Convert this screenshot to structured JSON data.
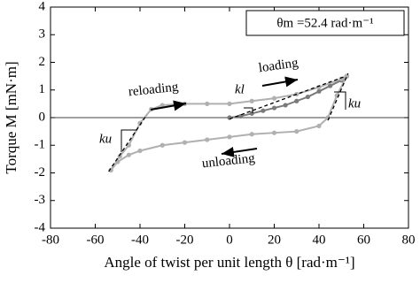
{
  "chart_data": {
    "type": "line",
    "xlabel": "Angle of twist per unit length  θ [rad·m⁻¹]",
    "ylabel": "Torque  M  [mN·m]",
    "annotations": {
      "theta_m": "θm =52.4 rad·m⁻¹",
      "loading": "loading",
      "reloading": "reloading",
      "unloading": "unloading",
      "k_l": "kl",
      "k_u_left": "ku",
      "k_u_right": "ku"
    },
    "xlim": [
      -80,
      80
    ],
    "xticks": [
      -80,
      -60,
      -40,
      -20,
      0,
      20,
      40,
      60,
      80
    ],
    "ylim": [
      -4,
      4
    ],
    "yticks": [
      -4,
      -3,
      -2,
      -1,
      0,
      1,
      2,
      3,
      4
    ],
    "series": [
      {
        "color": "#7a7a7a",
        "markers": true,
        "x": [
          0,
          5,
          10,
          15,
          20,
          25,
          30,
          35,
          40,
          45,
          50,
          52.4
        ],
        "values": [
          0,
          0.05,
          0.15,
          0.25,
          0.35,
          0.45,
          0.6,
          0.75,
          0.95,
          1.15,
          1.35,
          1.5
        ]
      },
      {
        "color": "#b0b0b0",
        "markers": true,
        "x": [
          52.4,
          48,
          44,
          40,
          30,
          20,
          10,
          0,
          -10,
          -20,
          -30,
          -40,
          -45,
          -50,
          -53
        ],
        "values": [
          1.5,
          0.8,
          0.0,
          -0.3,
          -0.5,
          -0.55,
          -0.6,
          -0.7,
          -0.8,
          -0.9,
          -1.0,
          -1.2,
          -1.35,
          -1.6,
          -1.9
        ]
      },
      {
        "color": "#b0b0b0",
        "markers": true,
        "x": [
          -53,
          -49,
          -45,
          -40,
          -35,
          -30,
          -20,
          -10,
          0,
          10,
          20,
          30,
          40,
          50,
          52.4
        ],
        "values": [
          -1.9,
          -1.4,
          -1.0,
          -0.2,
          0.3,
          0.45,
          0.5,
          0.5,
          0.5,
          0.6,
          0.7,
          0.85,
          1.1,
          1.4,
          1.5
        ]
      },
      {
        "color": "#000000",
        "dash": true,
        "x": [
          -54,
          -37
        ],
        "values": [
          -1.95,
          0.1
        ]
      },
      {
        "color": "#000000",
        "dash": true,
        "x": [
          44,
          53
        ],
        "values": [
          -0.1,
          1.6
        ]
      },
      {
        "color": "#000000",
        "dash": true,
        "x": [
          0,
          52
        ],
        "values": [
          -0.05,
          1.5
        ]
      }
    ]
  }
}
